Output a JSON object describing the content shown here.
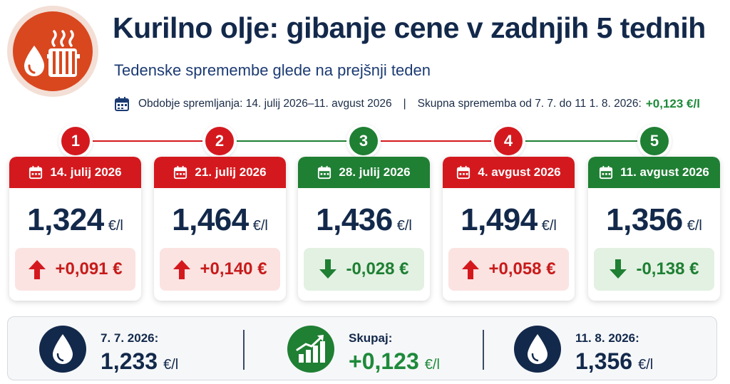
{
  "header": {
    "title": "Kurilno olje: gibanje cene v zadnjih 5 tednih",
    "subtitle": "Tedenske spremembe glede na prejšnji teden",
    "period": "Obdobje spremljanja: 14. julij 2026–11. avgust 2026",
    "separator": "|",
    "total_label": "Skupna sprememba od 7. 7. do 11 1. 8. 2026:",
    "total_value": "+0,123 €/l"
  },
  "colors": {
    "red": "#d4191e",
    "green": "#1f7f33",
    "navy": "#13294b",
    "orange": "#d9471f"
  },
  "icons": {
    "logo": "heating-oil-radiator-icon",
    "calendar": "calendar-icon",
    "drop": "oil-drop-icon",
    "chart": "growth-chart-icon"
  },
  "weeks": [
    {
      "step": "1",
      "date": "14. julij 2026",
      "price": "1,324",
      "unit": "€/l",
      "change": "+0,091 €",
      "direction": "up"
    },
    {
      "step": "2",
      "date": "21. julij 2026",
      "price": "1,464",
      "unit": "€/l",
      "change": "+0,140 €",
      "direction": "up"
    },
    {
      "step": "3",
      "date": "28. julij 2026",
      "price": "1,436",
      "unit": "€/l",
      "change": "-0,028 €",
      "direction": "down"
    },
    {
      "step": "4",
      "date": "4. avgust 2026",
      "price": "1,494",
      "unit": "€/l",
      "change": "+0,058 €",
      "direction": "up"
    },
    {
      "step": "5",
      "date": "11. avgust 2026",
      "price": "1,356",
      "unit": "€/l",
      "change": "-0,138 €",
      "direction": "down"
    }
  ],
  "summary": {
    "start": {
      "label": "7. 7. 2026:",
      "value": "1,233",
      "unit": "€/l"
    },
    "total": {
      "label": "Skupaj:",
      "value": "+0,123",
      "unit": "€/l"
    },
    "end": {
      "label": "11. 8. 2026:",
      "value": "1,356",
      "unit": "€/l"
    }
  }
}
